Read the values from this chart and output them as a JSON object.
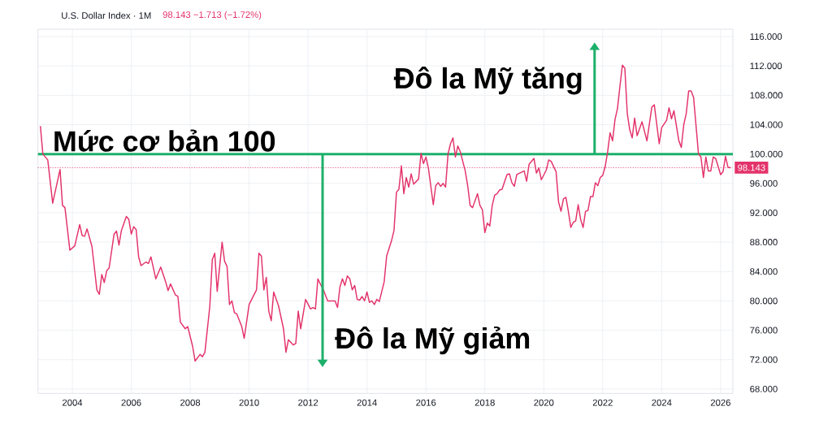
{
  "chart_data": {
    "type": "line",
    "title": "U.S. Dollar Index · 1M",
    "subtitle": "98.143 −1.713 (−1.72%)",
    "color": "#e3336b",
    "x": [
      "2002-12",
      "2003-01",
      "2003-03",
      "2003-05",
      "2003-08",
      "2003-09",
      "2003-10",
      "2003-12",
      "2004-02",
      "2004-04",
      "2004-05",
      "2004-06",
      "2004-07",
      "2004-09",
      "2004-11",
      "2004-12",
      "2005-01",
      "2005-02",
      "2005-03",
      "2005-04",
      "2005-06",
      "2005-07",
      "2005-08",
      "2005-09",
      "2005-11",
      "2005-12",
      "2006-01",
      "2006-02",
      "2006-03",
      "2006-04",
      "2006-05",
      "2006-07",
      "2006-08",
      "2006-09",
      "2006-11",
      "2007-01",
      "2007-03",
      "2007-04",
      "2007-05",
      "2007-07",
      "2007-08",
      "2007-09",
      "2007-11",
      "2007-12",
      "2008-02",
      "2008-03",
      "2008-05",
      "2008-06",
      "2008-07",
      "2008-09",
      "2008-10",
      "2008-11",
      "2008-12",
      "2009-02",
      "2009-03",
      "2009-04",
      "2009-05",
      "2009-06",
      "2009-07",
      "2009-08",
      "2009-10",
      "2009-11",
      "2010-01",
      "2010-04",
      "2010-05",
      "2010-06",
      "2010-07",
      "2010-08",
      "2010-09",
      "2010-10",
      "2010-11",
      "2011-01",
      "2011-03",
      "2011-04",
      "2011-05",
      "2011-07",
      "2011-08",
      "2011-09",
      "2011-10",
      "2011-12",
      "2012-02",
      "2012-03",
      "2012-04",
      "2012-05",
      "2012-06",
      "2012-07",
      "2012-09",
      "2012-12",
      "2013-01",
      "2013-02",
      "2013-03",
      "2013-04",
      "2013-05",
      "2013-06",
      "2013-07",
      "2013-08",
      "2013-09",
      "2013-10",
      "2013-11",
      "2013-12",
      "2014-01",
      "2014-02",
      "2014-03",
      "2014-04",
      "2014-05",
      "2014-06",
      "2014-08",
      "2014-09",
      "2014-11",
      "2014-12",
      "2015-01",
      "2015-02",
      "2015-03",
      "2015-04",
      "2015-05",
      "2015-06",
      "2015-07",
      "2015-08",
      "2015-10",
      "2015-11",
      "2015-12",
      "2016-01",
      "2016-02",
      "2016-04",
      "2016-05",
      "2016-06",
      "2016-07",
      "2016-08",
      "2016-09",
      "2016-10",
      "2016-11",
      "2016-12",
      "2017-01",
      "2017-02",
      "2017-03",
      "2017-05",
      "2017-06",
      "2017-07",
      "2017-08",
      "2017-10",
      "2017-11",
      "2017-12",
      "2018-01",
      "2018-02",
      "2018-03",
      "2018-04",
      "2018-05",
      "2018-06",
      "2018-07",
      "2018-08",
      "2018-10",
      "2018-11",
      "2018-12",
      "2019-01",
      "2019-02",
      "2019-05",
      "2019-06",
      "2019-07",
      "2019-09",
      "2019-10",
      "2019-11",
      "2019-12",
      "2020-02",
      "2020-03",
      "2020-04",
      "2020-06",
      "2020-07",
      "2020-08",
      "2020-09",
      "2020-10",
      "2020-11",
      "2020-12",
      "2021-01",
      "2021-02",
      "2021-03",
      "2021-04",
      "2021-05",
      "2021-06",
      "2021-07",
      "2021-08",
      "2021-09",
      "2021-10",
      "2021-11",
      "2021-12",
      "2022-01",
      "2022-02",
      "2022-03",
      "2022-04",
      "2022-05",
      "2022-06",
      "2022-07",
      "2022-08",
      "2022-09",
      "2022-10",
      "2022-11",
      "2022-12",
      "2023-01",
      "2023-02",
      "2023-03",
      "2023-05",
      "2023-07",
      "2023-09",
      "2023-10",
      "2023-12",
      "2024-01",
      "2024-03",
      "2024-04",
      "2024-05",
      "2024-06",
      "2024-08",
      "2024-09",
      "2024-10",
      "2024-11",
      "2024-12",
      "2025-01",
      "2025-02",
      "2025-04",
      "2025-05",
      "2025-06",
      "2025-07",
      "2025-08",
      "2025-09",
      "2025-10",
      "2025-11",
      "2026-01",
      "2026-02",
      "2026-03",
      "2026-04",
      "2026-05"
    ],
    "values": [
      103.8,
      100.0,
      99.2,
      93.3,
      97.9,
      93.0,
      92.7,
      86.9,
      87.5,
      90.4,
      88.9,
      88.8,
      89.8,
      87.4,
      81.5,
      80.9,
      83.6,
      82.5,
      84.1,
      84.5,
      89.1,
      89.5,
      87.6,
      89.6,
      91.5,
      91.1,
      89.1,
      90.1,
      89.7,
      86.0,
      84.8,
      85.3,
      85.1,
      86.0,
      83.0,
      84.6,
      82.6,
      81.4,
      82.3,
      80.8,
      80.6,
      77.1,
      76.2,
      76.5,
      73.8,
      71.8,
      72.7,
      72.4,
      73.0,
      79.3,
      85.6,
      86.5,
      81.3,
      88.0,
      85.4,
      84.7,
      79.5,
      80.0,
      78.4,
      78.2,
      76.5,
      74.9,
      79.5,
      81.5,
      86.5,
      86.1,
      81.5,
      83.2,
      78.6,
      77.3,
      81.2,
      79.3,
      76.2,
      73.0,
      74.7,
      74.0,
      74.2,
      78.6,
      76.2,
      80.2,
      78.9,
      79.1,
      78.9,
      83.0,
      82.3,
      81.7,
      80.0,
      80.0,
      79.1,
      81.9,
      83.0,
      82.1,
      83.4,
      83.0,
      81.5,
      82.1,
      80.2,
      80.1,
      80.6,
      80.0,
      81.2,
      79.8,
      80.0,
      79.5,
      80.2,
      79.9,
      82.6,
      86.1,
      88.2,
      89.6,
      94.8,
      95.2,
      98.4,
      94.6,
      96.8,
      95.5,
      97.3,
      95.9,
      96.6,
      100.1,
      98.7,
      99.6,
      98.1,
      93.1,
      95.7,
      96.1,
      95.6,
      96.0,
      95.5,
      100.0,
      101.4,
      102.2,
      99.6,
      101.1,
      100.3,
      97.7,
      95.7,
      93.0,
      92.7,
      94.6,
      93.0,
      92.4,
      89.3,
      90.6,
      90.2,
      93.0,
      94.4,
      94.6,
      95.1,
      95.2,
      97.2,
      97.3,
      96.1,
      95.6,
      97.2,
      97.7,
      96.3,
      98.6,
      99.4,
      97.4,
      98.1,
      96.5,
      97.8,
      99.2,
      99.0,
      97.6,
      93.5,
      92.2,
      93.9,
      94.1,
      92.2,
      90.0,
      90.7,
      90.9,
      93.1,
      91.1,
      90.0,
      92.2,
      92.3,
      94.2,
      94.2,
      96.1,
      95.7,
      96.8,
      97.1,
      98.3,
      100.3,
      102.9,
      101.8,
      104.7,
      106.2,
      109.2,
      112.1,
      111.7,
      105.5,
      103.3,
      102.2,
      104.9,
      102.5,
      104.4,
      101.8,
      106.4,
      106.7,
      101.4,
      103.6,
      104.6,
      106.3,
      104.8,
      105.9,
      101.8,
      100.9,
      104.0,
      105.5,
      108.6,
      108.6,
      107.7,
      100.0,
      99.6,
      96.8,
      99.6,
      97.7,
      97.7,
      99.6,
      99.4,
      97.2,
      97.6,
      99.7,
      98.2,
      98.143
    ],
    "xlim": [
      "2002-11",
      "2026-06"
    ],
    "xticks": [
      "2004",
      "2006",
      "2008",
      "2010",
      "2012",
      "2014",
      "2016",
      "2018",
      "2020",
      "2022",
      "2024",
      "2026"
    ],
    "ylim": [
      67.4,
      117
    ],
    "yticks": [
      {
        "value": 68,
        "label": "68.000"
      },
      {
        "value": 72,
        "label": "72.000"
      },
      {
        "value": 76,
        "label": "76.000"
      },
      {
        "value": 80,
        "label": "80.000"
      },
      {
        "value": 84,
        "label": "84.000"
      },
      {
        "value": 88,
        "label": "88.000"
      },
      {
        "value": 92,
        "label": "92.000"
      },
      {
        "value": 96,
        "label": "96.000"
      },
      {
        "value": 100,
        "label": "100.000"
      },
      {
        "value": 104,
        "label": "104.000"
      },
      {
        "value": 108,
        "label": "108.000"
      },
      {
        "value": 112,
        "label": "112.000"
      },
      {
        "value": 116,
        "label": "116.000"
      }
    ],
    "grid": true,
    "ref_lines": [
      {
        "axis": "y",
        "value": 100,
        "label": "Mức cơ bản 100",
        "color": "#1db06a"
      },
      {
        "axis": "y",
        "value": 98.143,
        "label": "98.143",
        "color": "#e3336b",
        "line_style": "dotted"
      }
    ],
    "annotations": [
      "Đô la Mỹ tăng",
      "Đô la Mỹ giảm"
    ]
  }
}
